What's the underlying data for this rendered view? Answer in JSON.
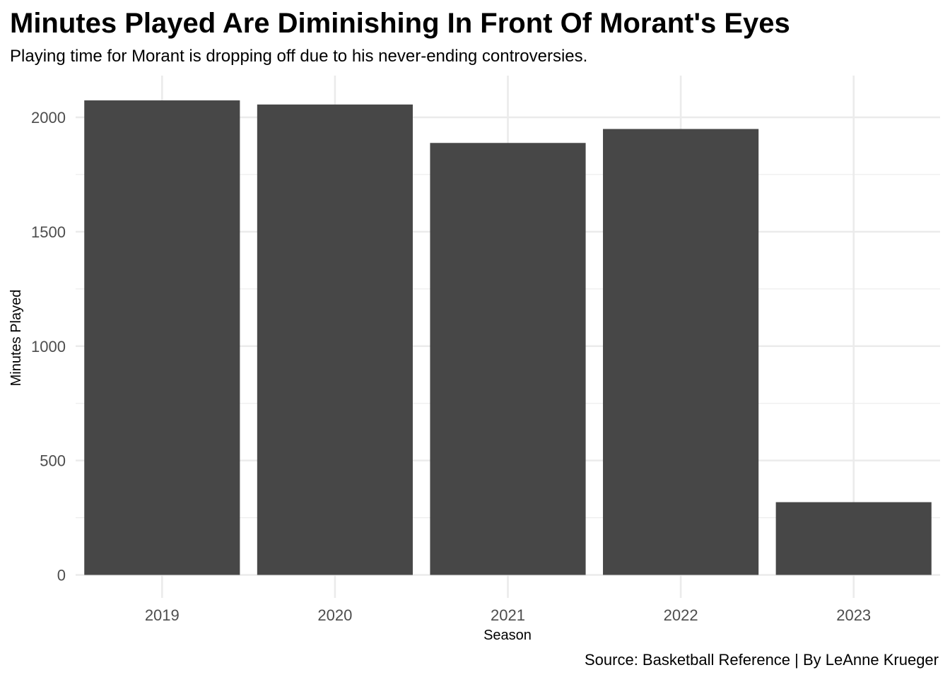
{
  "chart_data": {
    "type": "bar",
    "title": "Minutes Played Are Diminishing In Front Of Morant's Eyes",
    "subtitle": "Playing time for Morant is dropping off due to his never-ending controversies.",
    "xlabel": "Season",
    "ylabel": "Minutes Played",
    "caption": "Source: Basketball Reference | By LeAnne Krueger",
    "categories": [
      "2019",
      "2020",
      "2021",
      "2022",
      "2023"
    ],
    "values": [
      2074,
      2056,
      1888,
      1949,
      318
    ],
    "ylim": [
      0,
      2200
    ],
    "y_ticks": [
      0,
      500,
      1000,
      1500,
      2000
    ],
    "y_tick_labels": [
      "0",
      "500",
      "1000",
      "1500",
      "2000"
    ],
    "grid": true,
    "bar_color": "#474747",
    "grid_color": "#ebebeb",
    "legend": "none"
  }
}
